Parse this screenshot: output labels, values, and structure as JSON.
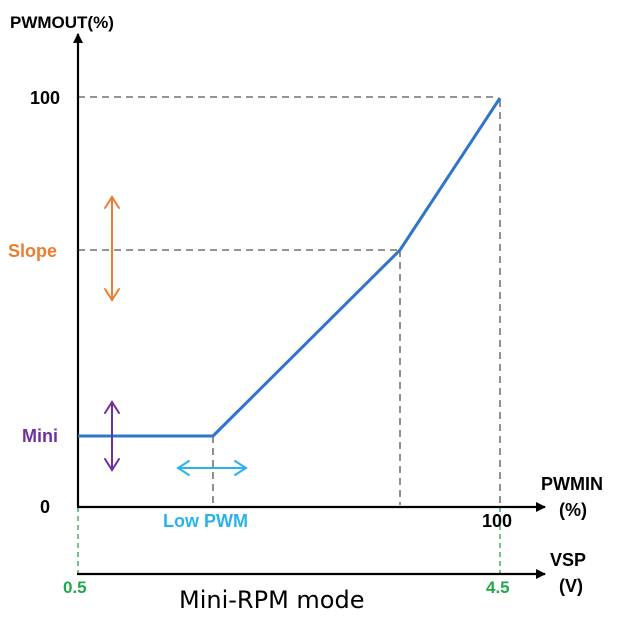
{
  "diagram": {
    "y_axis_label": "PWMOUT(%)",
    "y_tick_100": "100",
    "y_tick_0": "0",
    "slope_label": "Slope",
    "mini_label": "Mini",
    "low_pwm_label": "Low PWM",
    "x_axis_label_line1": "PWMIN",
    "x_axis_label_line2": "(%)",
    "x_tick_100": "100",
    "vsp_label_line1": "VSP",
    "vsp_label_line2": "(V)",
    "vsp_min": "0.5",
    "vsp_max": "4.5",
    "caption": "Mini-RPM mode"
  },
  "colors": {
    "axis": "#000000",
    "curve": "#2f75c9",
    "dashed_guide": "#555555",
    "slope": "#ed7d31",
    "mini": "#7030a0",
    "low_pwm": "#2ab3ea",
    "vsp_ticks": "#22a84a"
  }
}
